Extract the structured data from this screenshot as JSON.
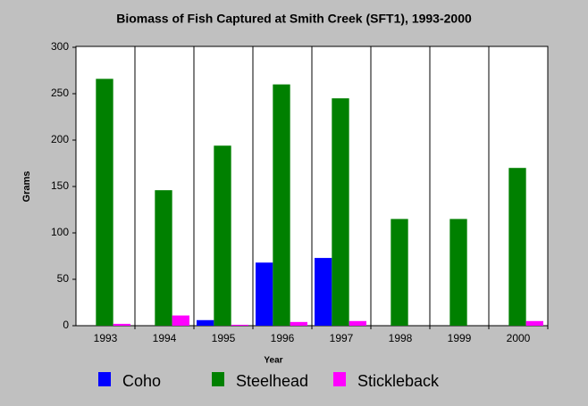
{
  "chart_data": {
    "type": "bar",
    "title": "Biomass of Fish Captured at Smith Creek (SFT1), 1993-2000",
    "x_label": "Year",
    "y_label": "Grams",
    "categories": [
      "1993",
      "1994",
      "1995",
      "1996",
      "1997",
      "1998",
      "1999",
      "2000"
    ],
    "series": [
      {
        "name": "Coho",
        "color": "#0000ff",
        "values": [
          0,
          0,
          6,
          68,
          73,
          0,
          0,
          0
        ]
      },
      {
        "name": "Steelhead",
        "color": "#008000",
        "values": [
          266,
          146,
          194,
          260,
          245,
          115,
          115,
          170
        ]
      },
      {
        "name": "Stickleback",
        "color": "#ff00ff",
        "values": [
          2,
          11,
          1,
          4,
          5,
          0,
          0,
          5
        ]
      }
    ],
    "ylim": [
      0,
      300
    ],
    "yticks": [
      0,
      50,
      100,
      150,
      200,
      250,
      300
    ]
  }
}
